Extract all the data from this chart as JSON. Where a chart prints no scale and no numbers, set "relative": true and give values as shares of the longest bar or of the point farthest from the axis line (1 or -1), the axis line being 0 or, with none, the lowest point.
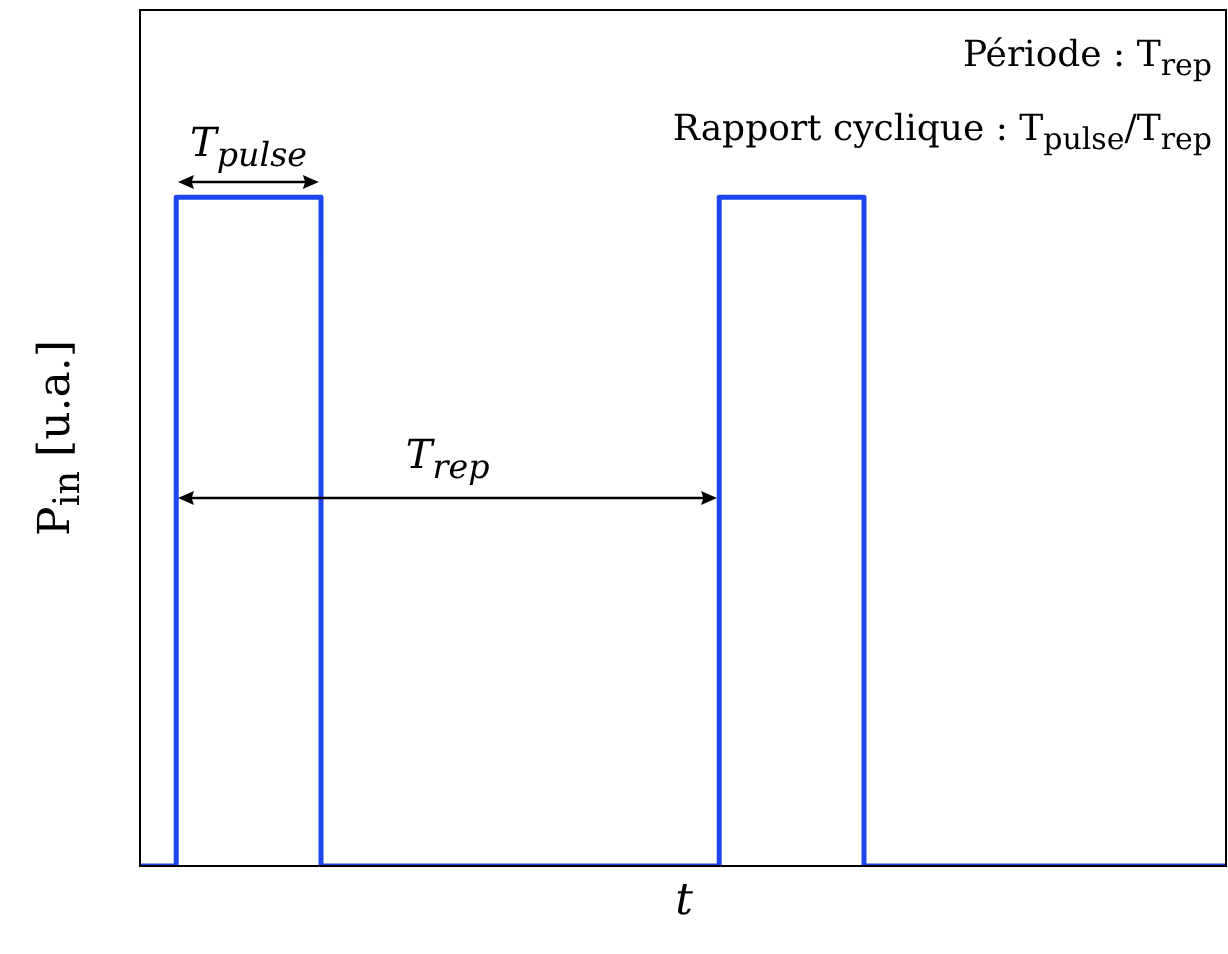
{
  "chart_data": {
    "type": "step",
    "relative": true,
    "xlabel": "t",
    "ylabel": "P$_{in}$ [u.a.]",
    "categories": [
      null,
      null,
      null,
      null,
      null,
      null,
      null,
      null,
      null,
      null,
      null,
      null,
      null,
      null,
      null,
      null,
      null,
      null,
      null,
      null,
      null,
      null,
      null,
      null,
      null,
      null,
      null,
      null,
      null,
      null,
      null
    ],
    "series": [
      {
        "color": "#1f45f0",
        "values": [
          0,
          1,
          1,
          1,
          1,
          0,
          0,
          0,
          0,
          0,
          0,
          0,
          0,
          0,
          0,
          0,
          1,
          1,
          1,
          1,
          0,
          0,
          0,
          0,
          0,
          0,
          0,
          0,
          0,
          0,
          0
        ]
      }
    ],
    "annotations": [
      "Période : T$_{rep}$",
      "Rapport cyclique : T$_{pulse}$/T$_{rep}$",
      "T$_{pulse}$",
      "T$_{rep}$"
    ],
    "grid": false,
    "legend": false,
    "tick_labels": false
  }
}
